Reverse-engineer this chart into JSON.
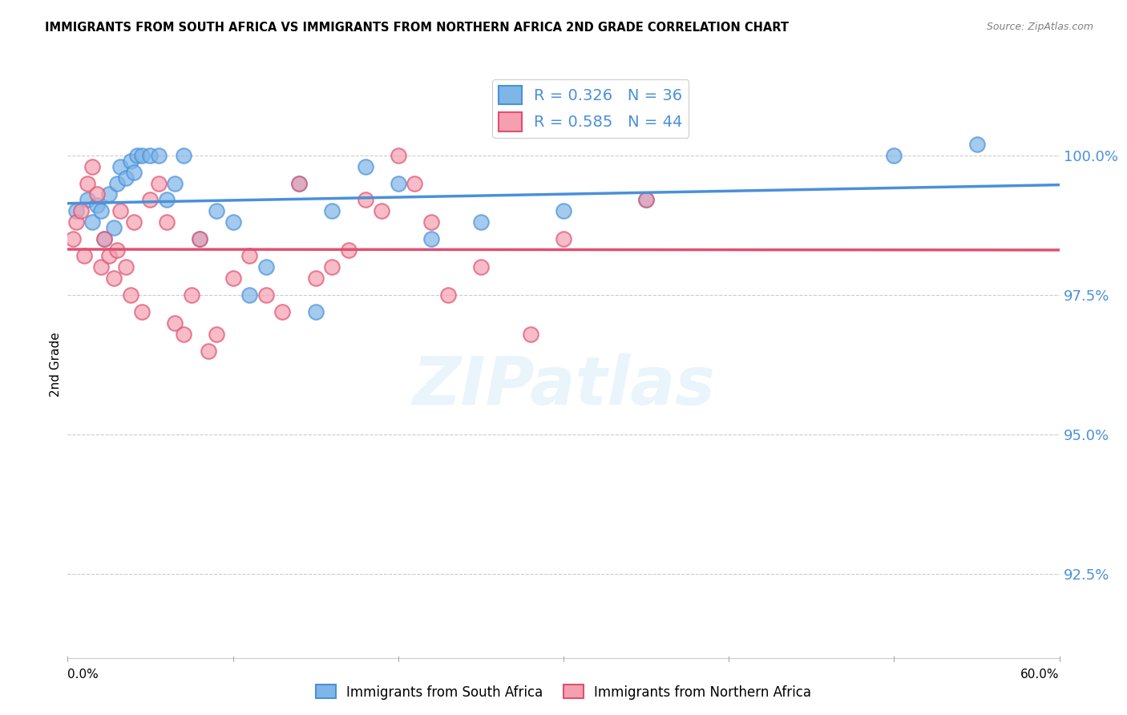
{
  "title": "IMMIGRANTS FROM SOUTH AFRICA VS IMMIGRANTS FROM NORTHERN AFRICA 2ND GRADE CORRELATION CHART",
  "source": "Source: ZipAtlas.com",
  "ylabel": "2nd Grade",
  "y_ticks": [
    92.5,
    95.0,
    97.5,
    100.0
  ],
  "y_tick_labels": [
    "92.5%",
    "95.0%",
    "97.5%",
    "100.0%"
  ],
  "xlim": [
    0.0,
    60.0
  ],
  "ylim": [
    91.0,
    101.5
  ],
  "legend1_label": "Immigrants from South Africa",
  "legend2_label": "Immigrants from Northern Africa",
  "R1": 0.326,
  "N1": 36,
  "R2": 0.585,
  "N2": 44,
  "color_blue": "#7EB6E8",
  "color_pink": "#F4A0B0",
  "color_blue_line": "#4A90D9",
  "color_pink_line": "#E05070",
  "color_blue_text": "#4A90D9",
  "scatter_blue_x": [
    0.5,
    1.2,
    1.5,
    1.8,
    2.0,
    2.2,
    2.5,
    2.8,
    3.0,
    3.2,
    3.5,
    3.8,
    4.0,
    4.2,
    4.5,
    5.0,
    5.5,
    6.0,
    6.5,
    7.0,
    8.0,
    9.0,
    10.0,
    11.0,
    12.0,
    14.0,
    15.0,
    16.0,
    18.0,
    20.0,
    22.0,
    25.0,
    30.0,
    35.0,
    50.0,
    55.0
  ],
  "scatter_blue_y": [
    99.0,
    99.2,
    98.8,
    99.1,
    99.0,
    98.5,
    99.3,
    98.7,
    99.5,
    99.8,
    99.6,
    99.9,
    99.7,
    100.0,
    100.0,
    100.0,
    100.0,
    99.2,
    99.5,
    100.0,
    98.5,
    99.0,
    98.8,
    97.5,
    98.0,
    99.5,
    97.2,
    99.0,
    99.8,
    99.5,
    98.5,
    98.8,
    99.0,
    99.2,
    100.0,
    100.2
  ],
  "scatter_pink_x": [
    0.3,
    0.5,
    0.8,
    1.0,
    1.2,
    1.5,
    1.8,
    2.0,
    2.2,
    2.5,
    2.8,
    3.0,
    3.2,
    3.5,
    3.8,
    4.0,
    4.5,
    5.0,
    5.5,
    6.0,
    6.5,
    7.0,
    7.5,
    8.0,
    8.5,
    9.0,
    10.0,
    11.0,
    12.0,
    13.0,
    14.0,
    15.0,
    16.0,
    17.0,
    18.0,
    19.0,
    20.0,
    21.0,
    22.0,
    23.0,
    25.0,
    28.0,
    30.0,
    35.0
  ],
  "scatter_pink_y": [
    98.5,
    98.8,
    99.0,
    98.2,
    99.5,
    99.8,
    99.3,
    98.0,
    98.5,
    98.2,
    97.8,
    98.3,
    99.0,
    98.0,
    97.5,
    98.8,
    97.2,
    99.2,
    99.5,
    98.8,
    97.0,
    96.8,
    97.5,
    98.5,
    96.5,
    96.8,
    97.8,
    98.2,
    97.5,
    97.2,
    99.5,
    97.8,
    98.0,
    98.3,
    99.2,
    99.0,
    100.0,
    99.5,
    98.8,
    97.5,
    98.0,
    96.8,
    98.5,
    99.2
  ]
}
